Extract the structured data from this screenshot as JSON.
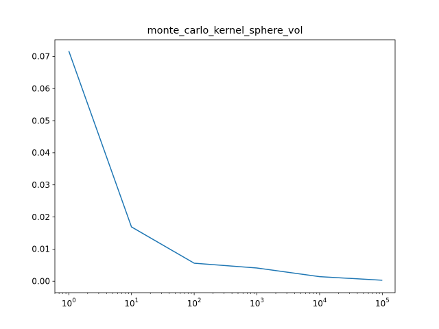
{
  "chart_data": {
    "type": "line",
    "title": "monte_carlo_kernel_sphere_vol",
    "xlabel": "",
    "ylabel": "",
    "xscale": "log",
    "grid": false,
    "xlim": [
      0.6,
      160000
    ],
    "ylim": [
      -0.00358,
      0.0752
    ],
    "x_ticks": [
      {
        "value": 1,
        "base": "10",
        "exp": "0"
      },
      {
        "value": 10,
        "base": "10",
        "exp": "1"
      },
      {
        "value": 100,
        "base": "10",
        "exp": "2"
      },
      {
        "value": 1000,
        "base": "10",
        "exp": "3"
      },
      {
        "value": 10000,
        "base": "10",
        "exp": "4"
      },
      {
        "value": 100000,
        "base": "10",
        "exp": "5"
      }
    ],
    "y_ticks": [
      {
        "value": 0.0,
        "label": "0.00"
      },
      {
        "value": 0.01,
        "label": "0.01"
      },
      {
        "value": 0.02,
        "label": "0.02"
      },
      {
        "value": 0.03,
        "label": "0.03"
      },
      {
        "value": 0.04,
        "label": "0.04"
      },
      {
        "value": 0.05,
        "label": "0.05"
      },
      {
        "value": 0.06,
        "label": "0.06"
      },
      {
        "value": 0.07,
        "label": "0.07"
      }
    ],
    "series": [
      {
        "color": "#1f77b4",
        "x": [
          1,
          10,
          100,
          1000,
          10000,
          100000
        ],
        "y": [
          0.0717,
          0.0169,
          0.0056,
          0.0041,
          0.0014,
          0.0003
        ]
      }
    ]
  }
}
